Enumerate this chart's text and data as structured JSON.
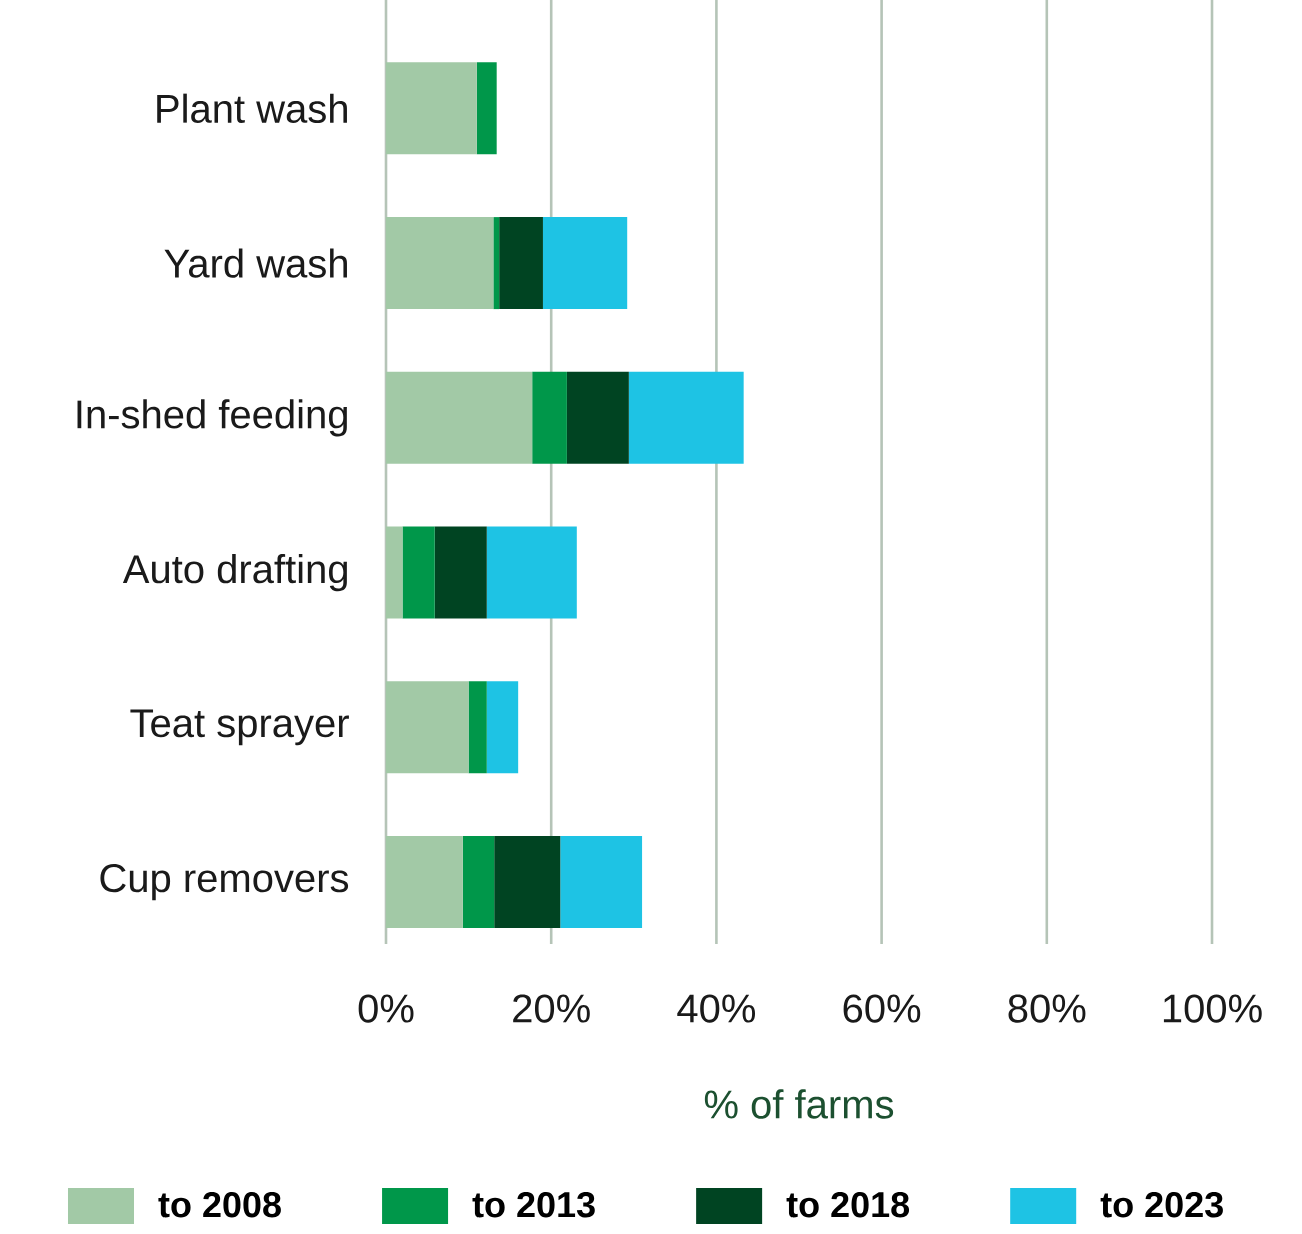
{
  "chart_data": {
    "type": "bar",
    "orientation": "horizontal",
    "stacked": true,
    "categories": [
      "Plant wash",
      "Yard wash",
      "In-shed feeding",
      "Auto drafting",
      "Teat sprayer",
      "Cup removers"
    ],
    "series": [
      {
        "name": "to 2008",
        "color": "#a2c9a6",
        "values": [
          11,
          13,
          17.7,
          2,
          10,
          9.3
        ]
      },
      {
        "name": "to 2013",
        "color": "#00974a",
        "values": [
          2.4,
          0.7,
          4.2,
          3.9,
          2.2,
          3.8
        ]
      },
      {
        "name": "to 2018",
        "color": "#004422",
        "values": [
          0,
          5.3,
          7.5,
          6.3,
          0,
          8
        ]
      },
      {
        "name": "to 2023",
        "color": "#1ec3e4",
        "values": [
          0,
          10.2,
          13.9,
          10.9,
          3.8,
          9.9
        ]
      }
    ],
    "xlim": [
      0,
      100
    ],
    "xticks": [
      {
        "value": 0,
        "label": "0%"
      },
      {
        "value": 20,
        "label": "20%"
      },
      {
        "value": 40,
        "label": "40%"
      },
      {
        "value": 60,
        "label": "60%"
      },
      {
        "value": 80,
        "label": "80%"
      },
      {
        "value": 100,
        "label": "100%"
      }
    ],
    "xlabel": "% of farms",
    "grid": "x",
    "legend": "bottom"
  }
}
